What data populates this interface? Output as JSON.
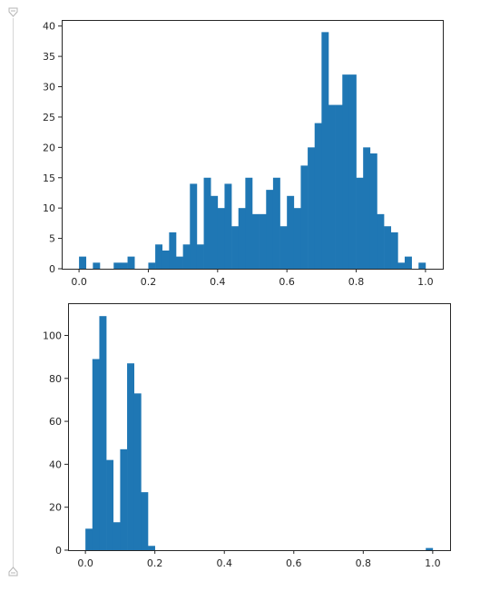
{
  "theme": {
    "bar_color": "#1f77b4",
    "axis_color": "#262626",
    "gutter_color": "#d6d6d6"
  },
  "gutter": {
    "top_icon": "fold-marker-icon",
    "bottom_icon": "fold-marker-icon"
  },
  "chart_data": [
    {
      "type": "bar",
      "subtype": "histogram",
      "title": "",
      "xlabel": "",
      "ylabel": "",
      "xlim": [
        -0.05,
        1.05
      ],
      "ylim": [
        0,
        41
      ],
      "bin_width": 0.02,
      "bin_starts": [
        0.0,
        0.02,
        0.04,
        0.06,
        0.08,
        0.1,
        0.12,
        0.14,
        0.16,
        0.18,
        0.2,
        0.22,
        0.24,
        0.26,
        0.28,
        0.3,
        0.32,
        0.34,
        0.36,
        0.38,
        0.4,
        0.42,
        0.44,
        0.46,
        0.48,
        0.5,
        0.52,
        0.54,
        0.56,
        0.58,
        0.6,
        0.62,
        0.64,
        0.66,
        0.68,
        0.7,
        0.72,
        0.74,
        0.76,
        0.78,
        0.8,
        0.82,
        0.84,
        0.86,
        0.88,
        0.9,
        0.92,
        0.94,
        0.96,
        0.98
      ],
      "values": [
        2,
        0,
        1,
        0,
        0,
        1,
        1,
        2,
        0,
        0,
        1,
        4,
        3,
        6,
        2,
        4,
        14,
        4,
        15,
        12,
        10,
        14,
        7,
        10,
        15,
        9,
        9,
        13,
        15,
        7,
        12,
        10,
        17,
        20,
        24,
        39,
        27,
        27,
        32,
        32,
        15,
        20,
        19,
        9,
        7,
        6,
        1,
        2,
        0,
        1
      ],
      "x_ticks": [
        0.0,
        0.2,
        0.4,
        0.6,
        0.8,
        1.0
      ],
      "x_tick_labels": [
        "0.0",
        "0.2",
        "0.4",
        "0.6",
        "0.8",
        "1.0"
      ],
      "y_ticks": [
        0,
        5,
        10,
        15,
        20,
        25,
        30,
        35,
        40
      ],
      "y_tick_labels": [
        "0",
        "5",
        "10",
        "15",
        "20",
        "25",
        "30",
        "35",
        "40"
      ],
      "grid": false,
      "legend": "none"
    },
    {
      "type": "bar",
      "subtype": "histogram",
      "title": "",
      "xlabel": "",
      "ylabel": "",
      "xlim": [
        -0.05,
        1.05
      ],
      "ylim": [
        0,
        115
      ],
      "bin_width": 0.02,
      "bin_starts": [
        0.0,
        0.02,
        0.04,
        0.06,
        0.08,
        0.1,
        0.12,
        0.14,
        0.16,
        0.18,
        0.2,
        0.22,
        0.24,
        0.26,
        0.28,
        0.3,
        0.32,
        0.34,
        0.36,
        0.38,
        0.4,
        0.42,
        0.44,
        0.46,
        0.48,
        0.5,
        0.52,
        0.54,
        0.56,
        0.58,
        0.6,
        0.62,
        0.64,
        0.66,
        0.68,
        0.7,
        0.72,
        0.74,
        0.76,
        0.78,
        0.8,
        0.82,
        0.84,
        0.86,
        0.88,
        0.9,
        0.92,
        0.94,
        0.96,
        0.98
      ],
      "values": [
        10,
        89,
        109,
        42,
        13,
        47,
        87,
        73,
        27,
        2,
        0,
        0,
        0,
        0,
        0,
        0,
        0,
        0,
        0,
        0,
        0,
        0,
        0,
        0,
        0,
        0,
        0,
        0,
        0,
        0,
        0,
        0,
        0,
        0,
        0,
        0,
        0,
        0,
        0,
        0,
        0,
        0,
        0,
        0,
        0,
        0,
        0,
        0,
        0,
        1
      ],
      "x_ticks": [
        0.0,
        0.2,
        0.4,
        0.6,
        0.8,
        1.0
      ],
      "x_tick_labels": [
        "0.0",
        "0.2",
        "0.4",
        "0.6",
        "0.8",
        "1.0"
      ],
      "y_ticks": [
        0,
        20,
        40,
        60,
        80,
        100
      ],
      "y_tick_labels": [
        "0",
        "20",
        "40",
        "60",
        "80",
        "100"
      ],
      "grid": false,
      "legend": "none"
    }
  ]
}
